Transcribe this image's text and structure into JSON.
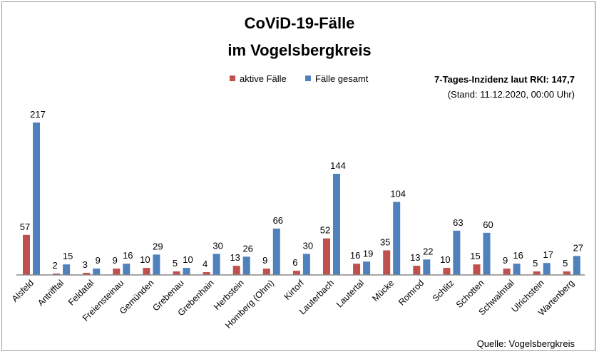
{
  "chart_data": {
    "type": "bar",
    "title": "CoViD-19-Fälle",
    "subtitle": "im Vogelsbergkreis",
    "xlabel": "",
    "ylabel": "",
    "ylim": [
      0,
      220
    ],
    "grid": false,
    "legend_position": "top-center",
    "categories": [
      "Alsfeld",
      "Antrifftal",
      "Feldatal",
      "Freiensteinau",
      "Gemünden",
      "Grebenau",
      "Grebenhain",
      "Herbstein",
      "Homberg (Ohm)",
      "Kirtorf",
      "Lauterbach",
      "Lautertal",
      "Mücke",
      "Romrod",
      "Schlitz",
      "Schotten",
      "Schwalmtal",
      "Ulrichstein",
      "Wartenberg"
    ],
    "series": [
      {
        "name": "aktive Fälle",
        "color": "#c0504d",
        "values": [
          57,
          2,
          3,
          9,
          10,
          5,
          4,
          13,
          9,
          6,
          52,
          16,
          35,
          13,
          10,
          15,
          9,
          5,
          5
        ]
      },
      {
        "name": "Fälle gesamt",
        "color": "#4f81bd",
        "values": [
          217,
          15,
          9,
          16,
          29,
          10,
          30,
          26,
          66,
          30,
          144,
          19,
          104,
          22,
          63,
          60,
          16,
          17,
          27
        ]
      }
    ],
    "annotations": {
      "incidence": "7-Tages-Inzidenz laut RKI: 147,7",
      "stand": "(Stand: 11.12.2020, 00:00 Uhr)",
      "source": "Quelle: Vogelsbergkreis"
    }
  }
}
